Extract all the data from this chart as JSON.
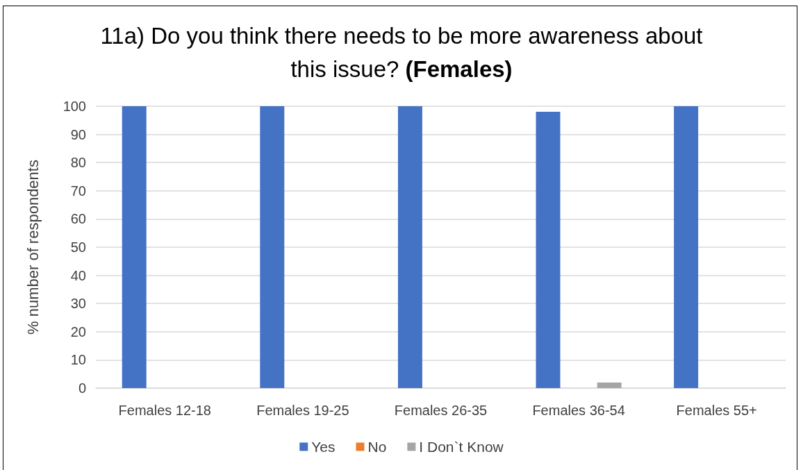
{
  "chart_data": {
    "type": "bar",
    "title": "11a) Do you think there needs to be more awareness about this issue? (Females)",
    "ylabel": "% number of respondents",
    "categories": [
      "Females 12-18",
      "Females 19-25",
      "Females 26-35",
      "Females 36-54",
      "Females 55+"
    ],
    "series": [
      {
        "name": "Yes",
        "color": "#4472c4",
        "values": [
          100,
          100,
          100,
          98,
          100
        ]
      },
      {
        "name": "No",
        "color": "#ed7d31",
        "values": [
          0,
          0,
          0,
          0,
          0
        ]
      },
      {
        "name": "I Don`t Know",
        "color": "#a5a5a5",
        "values": [
          0,
          0,
          0,
          2,
          0
        ]
      }
    ],
    "ylim": [
      0,
      100
    ],
    "yticks": [
      0,
      10,
      20,
      30,
      40,
      50,
      60,
      70,
      80,
      90,
      100
    ],
    "grid": "y",
    "legend": "bottom"
  }
}
